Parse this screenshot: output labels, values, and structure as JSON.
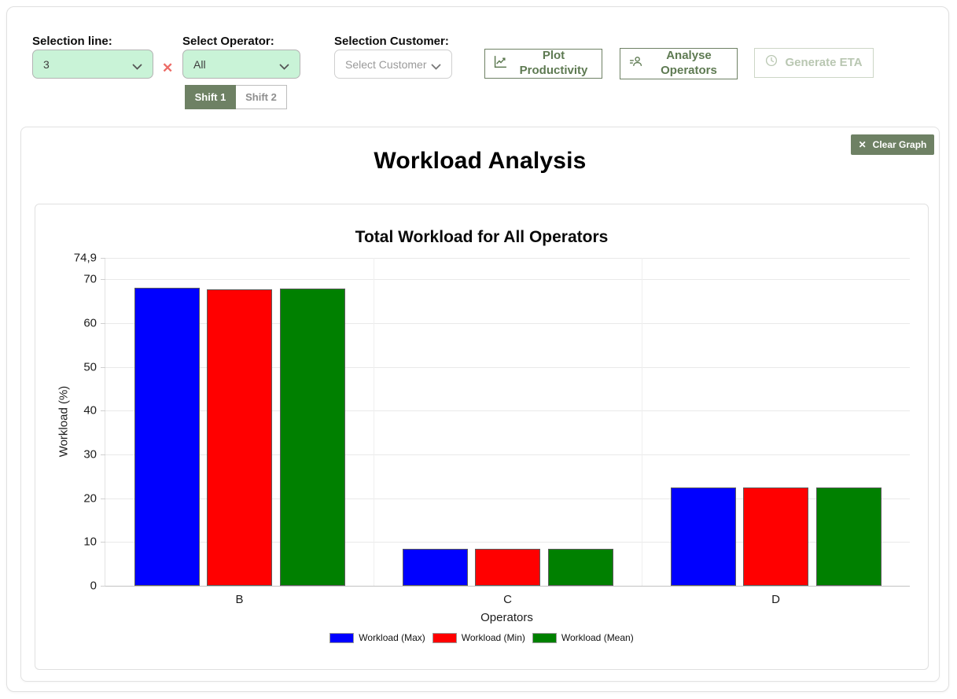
{
  "header": {
    "line": {
      "label": "Selection line:",
      "value": "3"
    },
    "operator": {
      "label": "Select Operator:",
      "value": "All"
    },
    "customer": {
      "label": "Selection Customer:",
      "placeholder": "Select Customer"
    },
    "clear_line_icon": "✕",
    "shift1": "Shift 1",
    "shift2": "Shift 2",
    "plot_productivity": "Plot Productivity",
    "analyse_operators": "Analyse Operators",
    "generate_eta": "Generate ETA"
  },
  "panel": {
    "title": "Workload Analysis",
    "clear_graph": "Clear Graph",
    "clear_graph_icon": "✕"
  },
  "chart_data": {
    "type": "bar",
    "title": "Total Workload for All Operators",
    "categories": [
      "B",
      "C",
      "D"
    ],
    "series": [
      {
        "name": "Workload (Max)",
        "color": "#0000ff",
        "values": [
          68.1,
          8.5,
          22.5
        ]
      },
      {
        "name": "Workload (Min)",
        "color": "#ff0000",
        "values": [
          67.7,
          8.4,
          22.4
        ]
      },
      {
        "name": "Workload (Mean)",
        "color": "#008000",
        "values": [
          67.9,
          8.5,
          22.5
        ]
      }
    ],
    "xlabel": "Operators",
    "ylabel": "Workload (%)",
    "ylim": [
      0,
      74.9
    ],
    "yticks": [
      0,
      10,
      20,
      30,
      40,
      50,
      60,
      70,
      74.9
    ],
    "ytick_labels": [
      "0",
      "10",
      "20",
      "30",
      "40",
      "50",
      "60",
      "70",
      "74,9"
    ],
    "grid": true,
    "legend_position": "bottom"
  },
  "colors": {
    "accent_olive": "#6e8164",
    "select_bg": "#c9f3d7",
    "button_text": "#5e7a52",
    "disabled_text": "#b9c7b2",
    "clear_x_red": "#ec6b66",
    "bar_blue": "#0000ff",
    "bar_red": "#ff0000",
    "bar_green": "#008000"
  }
}
